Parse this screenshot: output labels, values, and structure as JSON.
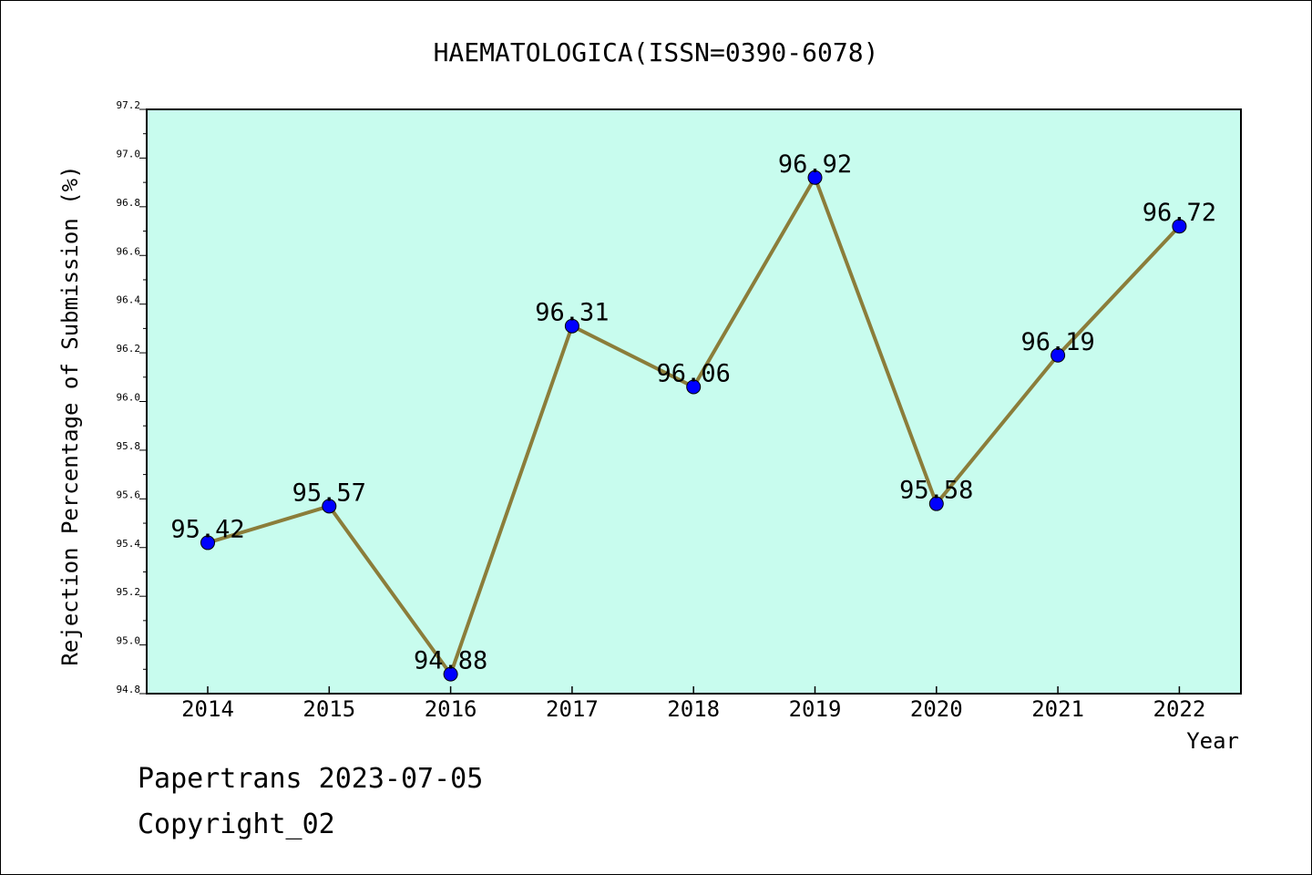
{
  "chart_data": {
    "type": "line",
    "title": "HAEMATOLOGICA(ISSN=0390-6078)",
    "xlabel": "Year",
    "ylabel": "Rejection Percentage of Submission (%)",
    "ylim": [
      94.8,
      97.2
    ],
    "yticks": [
      "94.8",
      "95.0",
      "95.2",
      "95.4",
      "95.6",
      "95.8",
      "96.0",
      "96.2",
      "96.4",
      "96.6",
      "96.8",
      "97.0",
      "97.2"
    ],
    "categories": [
      "2014",
      "2015",
      "2016",
      "2017",
      "2018",
      "2019",
      "2020",
      "2021",
      "2022"
    ],
    "values": [
      95.42,
      95.57,
      94.88,
      96.31,
      96.06,
      96.92,
      95.58,
      96.19,
      96.72
    ],
    "data_labels": [
      "95.42",
      "95.57",
      "94.88",
      "96.31",
      "96.06",
      "96.92",
      "95.58",
      "96.19",
      "96.72"
    ],
    "grid": false,
    "colors": {
      "plot_background": "#c8fcee",
      "line": "#8b7d3a",
      "marker": "#0000ff"
    }
  },
  "footer": {
    "line1": "Papertrans 2023-07-05",
    "line2": "Copyright_02"
  }
}
